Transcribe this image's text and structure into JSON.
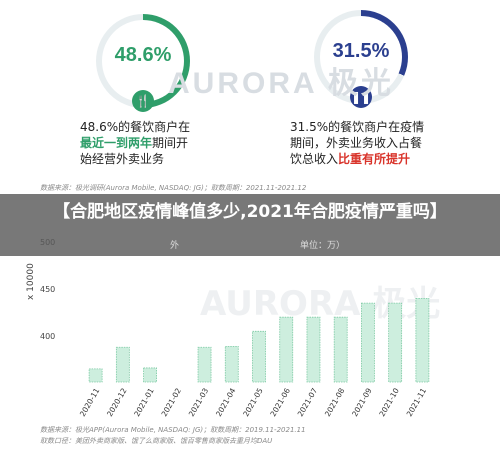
{
  "top_panel": {
    "left": {
      "percent": "48.6%",
      "line1": "48.6%的餐饮商户在",
      "line2_highlight": "最近一到两年",
      "line2_rest": "期间开",
      "line3": "始经营外卖业务",
      "badge_icon": "cutlery-icon"
    },
    "right": {
      "percent": "31.5%",
      "line1": "31.5%的餐饮商户在疫情",
      "line2": "期间，外卖业务收入占餐",
      "line3_prefix": "饮总收入",
      "line3_highlight": "比重有所提升",
      "badge_icon": "pause-icon"
    },
    "watermark": "AURORA 极光",
    "source": "数据来源：极光调研(Aurora Mobile, NASDAQ: JG)；取数周期：2021.11-2021.12"
  },
  "overlay": {
    "title": "【合肥地区疫情峰值多少,2021年合肥疫情严重吗】"
  },
  "chart": {
    "partial_header_left": "外",
    "partial_header_right": "单位：万）",
    "y_axis_label": "x 10000",
    "watermark": "AURORA 极光",
    "source_line1": "数据来源：极光APP(Aurora Mobile, NASDAQ: JG)；取数周期：2019.11-2021.11",
    "source_line2": "取数口径：美团外卖商家版、饿了么商家版、饿百零售商家版去重月均DAU"
  },
  "colors": {
    "green_accent": "#2f9e6a",
    "blue_accent": "#2b3f8f",
    "bar_fill": "#cdeede",
    "bar_stroke": "#7cc9a3",
    "highlight_red": "#d9342b"
  },
  "chart_data": {
    "type": "bar",
    "categories": [
      "2020-11",
      "2020-12",
      "2021-01",
      "2021-02",
      "2021-03",
      "2021-04",
      "2021-05",
      "2021-06",
      "2021-07",
      "2021-08",
      "2021-09",
      "2021-10",
      "2021-11"
    ],
    "values": [
      365,
      388,
      366,
      278,
      388,
      389,
      405,
      420,
      420,
      420,
      435,
      435,
      440
    ],
    "ylabel": "x 10000",
    "yticks": [
      400,
      450,
      500
    ],
    "grid": false
  }
}
